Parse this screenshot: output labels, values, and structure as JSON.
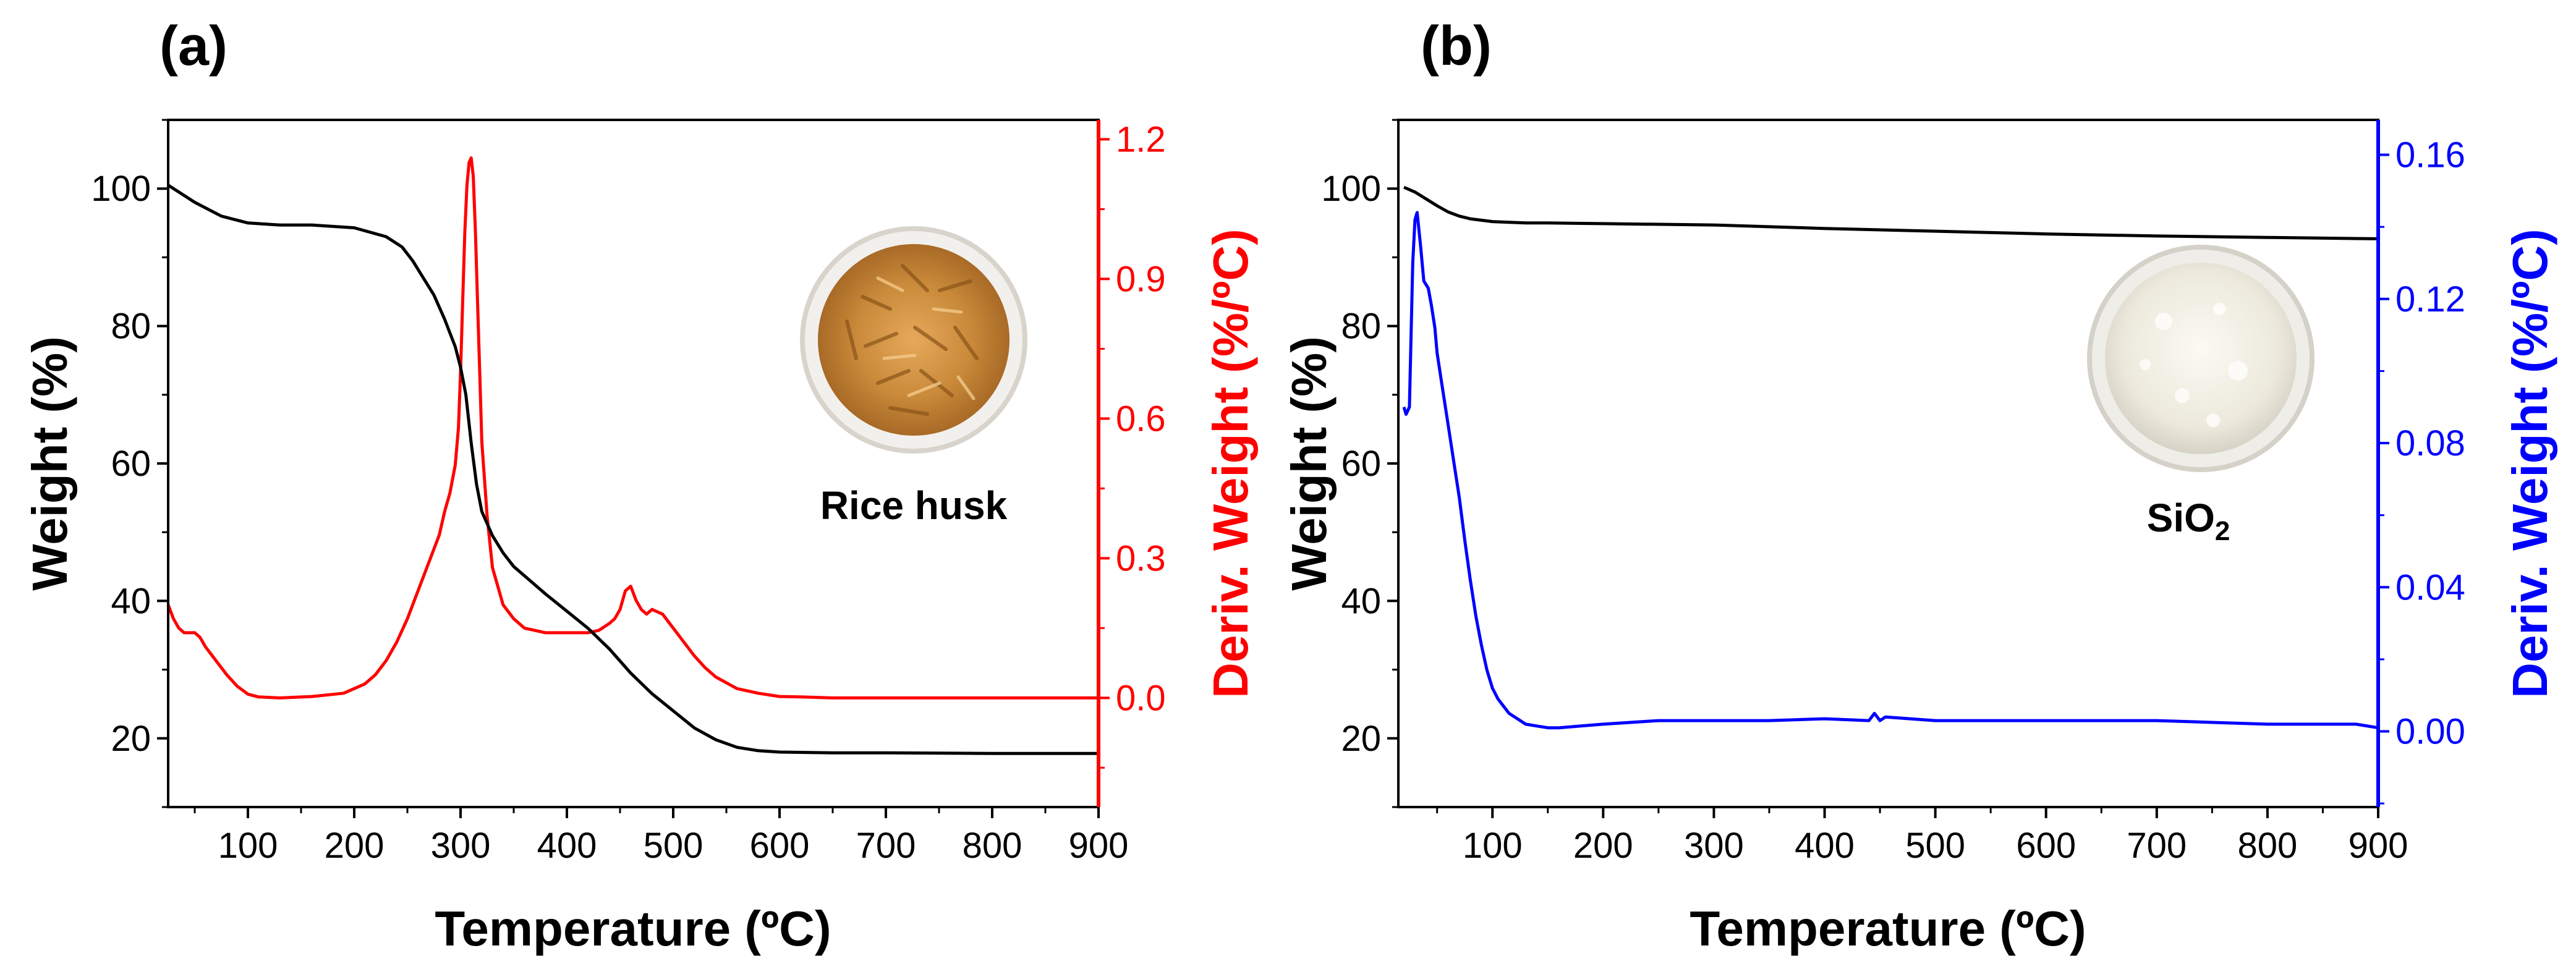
{
  "chart_data": [
    {
      "type": "line",
      "panel_label": "(a)",
      "sample_label": "Rice husk",
      "xlabel": "Temperature (ºC)",
      "ylabel": "Weight (%)",
      "y2label": "Deriv. Weight (%/ºC)",
      "xlim": [
        25,
        900
      ],
      "ylim": [
        10,
        110
      ],
      "y2lim": [
        -0.2345,
        1.2417
      ],
      "x_ticks": [
        100,
        200,
        300,
        400,
        500,
        600,
        700,
        800,
        900
      ],
      "y_ticks": [
        20,
        40,
        60,
        80,
        100
      ],
      "y2_ticks": [
        0.0,
        0.3,
        0.6,
        0.9,
        1.2
      ],
      "y2_tick_labels": [
        "0.0",
        "0.3",
        "0.6",
        "0.9",
        "1.2"
      ],
      "colors": {
        "weight": "#000000",
        "deriv": "#ff0000"
      },
      "series": [
        {
          "name": "Weight",
          "axis": "left",
          "x": [
            25,
            50,
            75,
            100,
            130,
            160,
            200,
            230,
            245,
            255,
            265,
            275,
            285,
            295,
            300,
            305,
            310,
            315,
            320,
            330,
            340,
            350,
            365,
            380,
            400,
            420,
            440,
            460,
            480,
            500,
            520,
            540,
            560,
            580,
            600,
            650,
            700,
            800,
            900
          ],
          "values": [
            100.5,
            98.0,
            96.0,
            95.0,
            94.7,
            94.7,
            94.3,
            93.0,
            91.5,
            89.5,
            87.0,
            84.5,
            81.0,
            77.0,
            74.0,
            70.0,
            63.0,
            57.0,
            53.0,
            49.5,
            47.0,
            45.0,
            43.0,
            41.0,
            38.5,
            36.0,
            33.0,
            29.5,
            26.5,
            24.0,
            21.5,
            19.8,
            18.7,
            18.2,
            18.0,
            17.9,
            17.9,
            17.8,
            17.8
          ]
        },
        {
          "name": "Deriv. Weight",
          "axis": "right",
          "x": [
            25,
            30,
            35,
            40,
            45,
            50,
            55,
            60,
            70,
            80,
            90,
            100,
            110,
            130,
            160,
            190,
            210,
            220,
            230,
            240,
            250,
            260,
            270,
            280,
            285,
            290,
            295,
            298,
            300,
            302,
            304,
            306,
            308,
            310,
            312,
            314,
            316,
            318,
            320,
            325,
            330,
            340,
            350,
            360,
            380,
            400,
            420,
            430,
            440,
            445,
            450,
            455,
            460,
            465,
            470,
            475,
            480,
            485,
            490,
            500,
            510,
            520,
            530,
            540,
            560,
            580,
            600,
            620,
            650,
            700,
            800,
            900
          ],
          "values": [
            0.2,
            0.17,
            0.15,
            0.14,
            0.14,
            0.14,
            0.13,
            0.11,
            0.08,
            0.05,
            0.025,
            0.008,
            0.002,
            0.0,
            0.003,
            0.01,
            0.03,
            0.05,
            0.08,
            0.12,
            0.17,
            0.23,
            0.29,
            0.35,
            0.4,
            0.44,
            0.5,
            0.58,
            0.7,
            0.85,
            1.0,
            1.1,
            1.15,
            1.16,
            1.12,
            1.0,
            0.85,
            0.7,
            0.55,
            0.39,
            0.28,
            0.2,
            0.17,
            0.15,
            0.14,
            0.14,
            0.14,
            0.145,
            0.16,
            0.17,
            0.19,
            0.23,
            0.24,
            0.21,
            0.19,
            0.18,
            0.19,
            0.185,
            0.18,
            0.15,
            0.12,
            0.09,
            0.065,
            0.045,
            0.02,
            0.01,
            0.003,
            0.002,
            0.0,
            0.0,
            0.0,
            0.0
          ]
        }
      ]
    },
    {
      "type": "line",
      "panel_label": "(b)",
      "sample_label_main": "SiO",
      "sample_label_sub": "2",
      "xlabel": "Temperature (ºC)",
      "ylabel": "Weight (%)",
      "y2label": "Deriv. Weight (%/ºC)",
      "xlim": [
        15,
        900
      ],
      "ylim": [
        10,
        110
      ],
      "y2lim": [
        -0.021,
        0.1697
      ],
      "x_ticks": [
        100,
        200,
        300,
        400,
        500,
        600,
        700,
        800,
        900
      ],
      "y_ticks": [
        20,
        40,
        60,
        80,
        100
      ],
      "y2_ticks": [
        0.0,
        0.04,
        0.08,
        0.12,
        0.16
      ],
      "y2_tick_labels": [
        "0.00",
        "0.04",
        "0.08",
        "0.12",
        "0.16"
      ],
      "colors": {
        "weight": "#000000",
        "deriv": "#0000ff"
      },
      "series": [
        {
          "name": "Weight",
          "axis": "left",
          "x": [
            20,
            30,
            40,
            50,
            60,
            70,
            80,
            100,
            130,
            150,
            200,
            300,
            400,
            500,
            600,
            700,
            800,
            900
          ],
          "values": [
            100.2,
            99.5,
            98.5,
            97.5,
            96.6,
            96.0,
            95.6,
            95.2,
            95.0,
            95.0,
            94.9,
            94.7,
            94.2,
            93.8,
            93.4,
            93.1,
            92.9,
            92.7
          ]
        },
        {
          "name": "Deriv. Weight",
          "axis": "right",
          "x": [
            20,
            22,
            25,
            28,
            30,
            32,
            35,
            38,
            40,
            42,
            45,
            48,
            50,
            55,
            60,
            65,
            70,
            75,
            80,
            85,
            90,
            95,
            100,
            105,
            110,
            115,
            120,
            130,
            140,
            150,
            160,
            180,
            200,
            250,
            300,
            350,
            400,
            440,
            445,
            450,
            455,
            500,
            600,
            700,
            750,
            800,
            850,
            880,
            900
          ],
          "values": [
            0.09,
            0.088,
            0.09,
            0.13,
            0.142,
            0.144,
            0.135,
            0.125,
            0.124,
            0.123,
            0.118,
            0.112,
            0.105,
            0.095,
            0.085,
            0.075,
            0.065,
            0.053,
            0.042,
            0.032,
            0.024,
            0.017,
            0.012,
            0.009,
            0.007,
            0.005,
            0.004,
            0.002,
            0.0015,
            0.001,
            0.001,
            0.0015,
            0.002,
            0.003,
            0.003,
            0.003,
            0.0035,
            0.003,
            0.005,
            0.003,
            0.004,
            0.003,
            0.003,
            0.003,
            0.0025,
            0.002,
            0.002,
            0.002,
            0.001
          ]
        }
      ]
    }
  ]
}
